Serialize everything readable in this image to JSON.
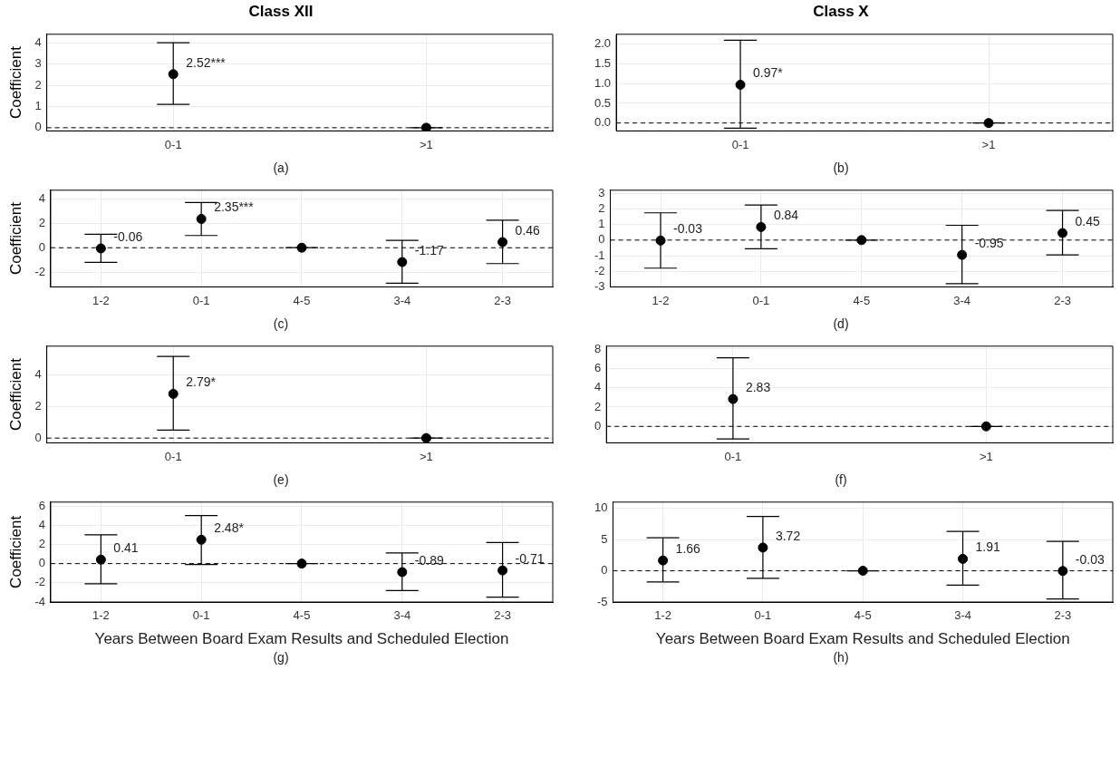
{
  "chart_data": [
    {
      "type": "scatter",
      "title": "Class XII",
      "ylabel": "Coefficient",
      "categories": [
        "0-1",
        ">1"
      ],
      "series": [
        {
          "color": "#000000",
          "values": [
            2.52,
            0
          ],
          "errors": [
            [
              1.1,
              4.0
            ],
            [
              0,
              0
            ]
          ],
          "value_labels": [
            "2.52***",
            null
          ]
        }
      ],
      "ylim": [
        -0.15,
        4.4
      ],
      "yticks": [
        0,
        1,
        2,
        3,
        4
      ],
      "grid": true,
      "marker": "circle",
      "ref_lines": [
        {
          "axis": "y",
          "value": 0,
          "line_style": "dashed",
          "color": "#000000"
        }
      ],
      "annotations": [
        "(a)"
      ]
    },
    {
      "type": "scatter",
      "title": "Class X",
      "categories": [
        "0-1",
        ">1"
      ],
      "series": [
        {
          "color": "#000000",
          "values": [
            0.97,
            0
          ],
          "errors": [
            [
              -0.13,
              2.1
            ],
            [
              0,
              0
            ]
          ],
          "value_labels": [
            "0.97*",
            null
          ]
        }
      ],
      "ylim": [
        -0.2,
        2.25
      ],
      "yticks": [
        {
          "value": 0,
          "label": "0.0"
        },
        {
          "value": 0.5,
          "label": "0.5"
        },
        {
          "value": 1,
          "label": "1.0"
        },
        {
          "value": 1.5,
          "label": "1.5"
        },
        {
          "value": 2,
          "label": "2.0"
        }
      ],
      "grid": true,
      "marker": "circle",
      "ref_lines": [
        {
          "axis": "y",
          "value": 0,
          "line_style": "dashed",
          "color": "#000000"
        }
      ],
      "annotations": [
        "(b)"
      ]
    },
    {
      "type": "scatter",
      "ylabel": "Coefficient",
      "categories": [
        "1-2",
        "0-1",
        "4-5",
        "3-4",
        "2-3"
      ],
      "series": [
        {
          "color": "#000000",
          "values": [
            -0.06,
            2.35,
            0,
            -1.17,
            0.46
          ],
          "errors": [
            [
              -1.2,
              1.1
            ],
            [
              1.0,
              3.7
            ],
            [
              0,
              0
            ],
            [
              -2.9,
              0.6
            ],
            [
              -1.3,
              2.25
            ]
          ],
          "value_labels": [
            "-0.06",
            "2.35***",
            null,
            "-1.17",
            "0.46"
          ]
        }
      ],
      "ylim": [
        -3.2,
        4.7
      ],
      "yticks": [
        -2,
        0,
        2,
        4
      ],
      "grid": true,
      "marker": "circle",
      "ref_lines": [
        {
          "axis": "y",
          "value": 0,
          "line_style": "dashed",
          "color": "#000000"
        }
      ],
      "annotations": [
        "(c)"
      ]
    },
    {
      "type": "scatter",
      "categories": [
        "1-2",
        "0-1",
        "4-5",
        "3-4",
        "2-3"
      ],
      "series": [
        {
          "color": "#000000",
          "values": [
            -0.03,
            0.84,
            0,
            -0.95,
            0.45
          ],
          "errors": [
            [
              -1.8,
              1.75
            ],
            [
              -0.55,
              2.25
            ],
            [
              0,
              0
            ],
            [
              -2.8,
              0.95
            ],
            [
              -0.95,
              1.9
            ]
          ],
          "value_labels": [
            "-0.03",
            "0.84",
            null,
            "-0.95",
            "0.45"
          ]
        }
      ],
      "ylim": [
        -3,
        3.2
      ],
      "yticks": [
        -3,
        -2,
        -1,
        0,
        1,
        2,
        3
      ],
      "grid": true,
      "marker": "circle",
      "ref_lines": [
        {
          "axis": "y",
          "value": 0,
          "line_style": "dashed",
          "color": "#000000"
        }
      ],
      "annotations": [
        "(d)"
      ]
    },
    {
      "type": "scatter",
      "ylabel": "Coefficient",
      "categories": [
        "0-1",
        ">1"
      ],
      "series": [
        {
          "color": "#000000",
          "values": [
            2.79,
            0
          ],
          "errors": [
            [
              0.5,
              5.15
            ],
            [
              0,
              0
            ]
          ],
          "value_labels": [
            "2.79*",
            null
          ]
        }
      ],
      "ylim": [
        -0.3,
        5.8
      ],
      "yticks": [
        0,
        2,
        4
      ],
      "grid": true,
      "marker": "circle",
      "ref_lines": [
        {
          "axis": "y",
          "value": 0,
          "line_style": "dashed",
          "color": "#000000"
        }
      ],
      "annotations": [
        "(e)"
      ]
    },
    {
      "type": "scatter",
      "categories": [
        "0-1",
        ">1"
      ],
      "series": [
        {
          "color": "#000000",
          "values": [
            2.83,
            0
          ],
          "errors": [
            [
              -1.3,
              7.1
            ],
            [
              0,
              0
            ]
          ],
          "value_labels": [
            "2.83",
            null
          ]
        }
      ],
      "ylim": [
        -1.7,
        8.3
      ],
      "yticks": [
        0,
        2,
        4,
        6,
        8
      ],
      "grid": true,
      "marker": "circle",
      "ref_lines": [
        {
          "axis": "y",
          "value": 0,
          "line_style": "dashed",
          "color": "#000000"
        }
      ],
      "annotations": [
        "(f)"
      ]
    },
    {
      "type": "scatter",
      "ylabel": "Coefficient",
      "xlabel": "Years Between Board Exam Results and Scheduled Election",
      "categories": [
        "1-2",
        "0-1",
        "4-5",
        "3-4",
        "2-3"
      ],
      "series": [
        {
          "color": "#000000",
          "values": [
            0.41,
            2.48,
            0,
            -0.89,
            -0.71
          ],
          "errors": [
            [
              -2.1,
              3.0
            ],
            [
              -0.1,
              5.0
            ],
            [
              0,
              0
            ],
            [
              -2.8,
              1.1
            ],
            [
              -3.5,
              2.2
            ]
          ],
          "value_labels": [
            "0.41",
            "2.48*",
            null,
            "-0.89",
            "-0.71"
          ]
        }
      ],
      "ylim": [
        -4,
        6.4
      ],
      "yticks": [
        -4,
        -2,
        0,
        2,
        4,
        6
      ],
      "grid": true,
      "marker": "circle",
      "ref_lines": [
        {
          "axis": "y",
          "value": 0,
          "line_style": "dashed",
          "color": "#000000"
        }
      ],
      "annotations": [
        "(g)"
      ]
    },
    {
      "type": "scatter",
      "xlabel": "Years Between Board Exam Results and Scheduled Election",
      "categories": [
        "1-2",
        "0-1",
        "4-5",
        "3-4",
        "2-3"
      ],
      "series": [
        {
          "color": "#000000",
          "values": [
            1.66,
            3.72,
            0,
            1.91,
            -0.03
          ],
          "errors": [
            [
              -1.8,
              5.3
            ],
            [
              -1.2,
              8.7
            ],
            [
              0,
              0
            ],
            [
              -2.3,
              6.3
            ],
            [
              -4.5,
              4.7
            ]
          ],
          "value_labels": [
            "1.66",
            "3.72",
            null,
            "1.91",
            "-0.03"
          ]
        }
      ],
      "ylim": [
        -5,
        11
      ],
      "yticks": [
        -5,
        0,
        5,
        10
      ],
      "grid": true,
      "marker": "circle",
      "ref_lines": [
        {
          "axis": "y",
          "value": 0,
          "line_style": "dashed",
          "color": "#000000"
        }
      ],
      "annotations": [
        "(h)"
      ]
    }
  ]
}
